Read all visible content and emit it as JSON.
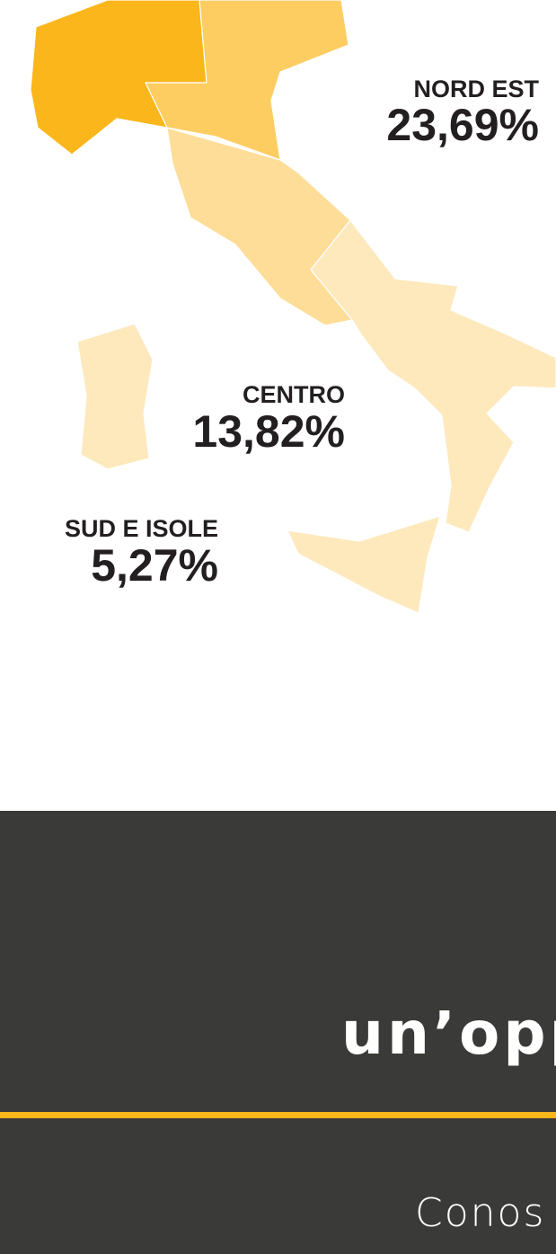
{
  "regions": [
    {
      "name": "NORD EST",
      "value": "23,69%"
    },
    {
      "name": "CENTRO",
      "value": "13,82%"
    },
    {
      "name": "SUD E ISOLE",
      "value": "5,27%"
    }
  ],
  "footer": {
    "brand": "un’opp",
    "tagline": "Conos"
  }
}
